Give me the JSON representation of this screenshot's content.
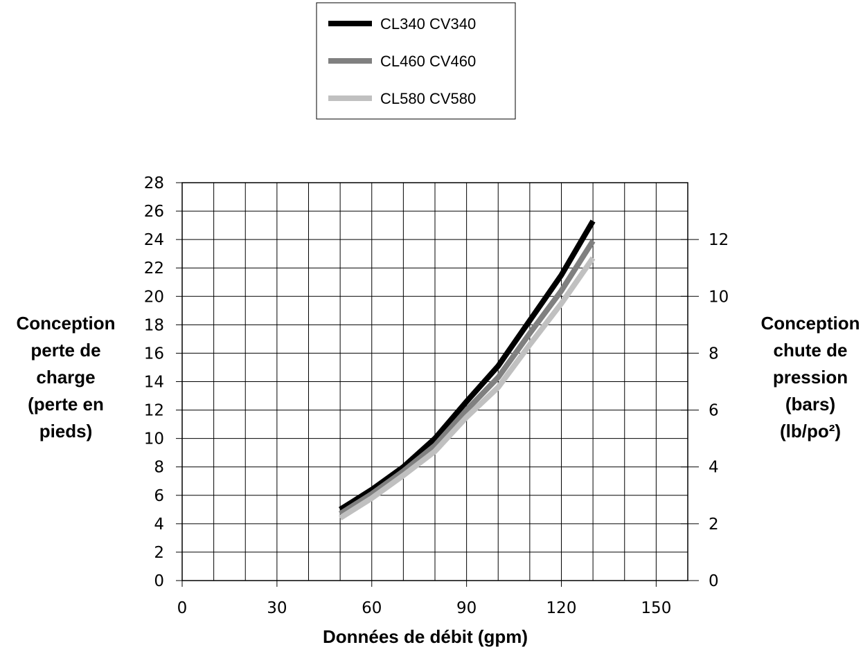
{
  "chart_data": {
    "type": "line",
    "x_axis": {
      "label": "Données de débit (gpm)",
      "range": [
        0,
        160
      ],
      "tick_labels": [
        "0",
        "30",
        "60",
        "90",
        "120",
        "150"
      ],
      "tick_values": [
        0,
        30,
        60,
        90,
        120,
        150
      ]
    },
    "y_axis_left": {
      "label_lines": [
        "Conception",
        "perte de",
        "charge",
        "(perte en",
        "pieds)"
      ],
      "range": [
        0,
        28
      ],
      "tick_labels": [
        "0",
        "2",
        "4",
        "6",
        "8",
        "10",
        "12",
        "14",
        "16",
        "18",
        "20",
        "22",
        "24",
        "26",
        "28"
      ],
      "tick_values": [
        0,
        2,
        4,
        6,
        8,
        10,
        12,
        14,
        16,
        18,
        20,
        22,
        24,
        26,
        28
      ]
    },
    "y_axis_right": {
      "label_lines": [
        "Conception",
        "chute de",
        "pression",
        "(bars)",
        "(lb/po²)"
      ],
      "range": [
        0,
        14
      ],
      "tick_labels": [
        "0",
        "2",
        "4",
        "6",
        "8",
        "10",
        "12"
      ],
      "tick_values": [
        0,
        2,
        4,
        6,
        8,
        10,
        12
      ]
    },
    "grid": true,
    "legend_position": "top-center",
    "x": [
      50,
      60,
      70,
      80,
      90,
      100,
      110,
      120,
      130
    ],
    "series": [
      {
        "name": "CL340 CV340",
        "color": "#000000",
        "values": [
          5.0,
          6.4,
          8.0,
          10.0,
          12.6,
          15.1,
          18.3,
          21.5,
          25.3
        ]
      },
      {
        "name": "CL460 CV460",
        "color": "#808080",
        "values": [
          4.7,
          6.1,
          7.7,
          9.5,
          12.0,
          14.3,
          17.4,
          20.4,
          23.9
        ]
      },
      {
        "name": "CL580 CV580",
        "color": "#c0c0c0",
        "values": [
          4.4,
          5.8,
          7.4,
          9.1,
          11.5,
          13.6,
          16.6,
          19.5,
          22.7
        ]
      }
    ]
  }
}
